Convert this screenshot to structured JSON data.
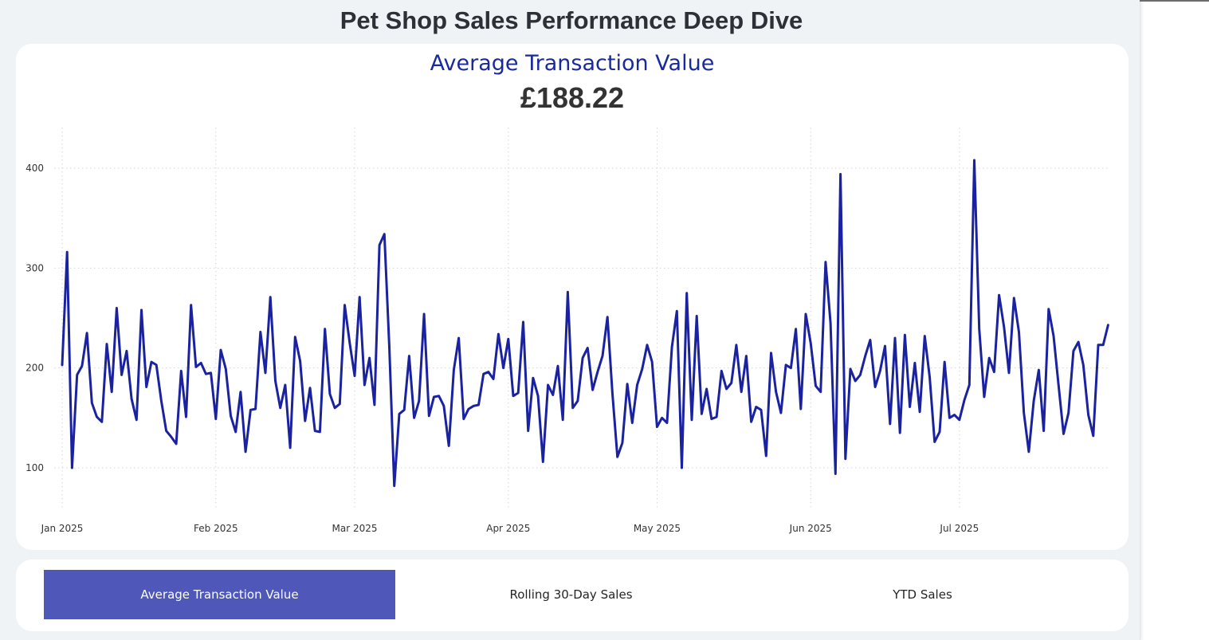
{
  "dashboard": {
    "title": "Pet Shop Sales Performance Deep Dive"
  },
  "kpi": {
    "label": "Average Transaction Value",
    "value": "£188.22"
  },
  "tabs": [
    {
      "label": "Average Transaction Value",
      "active": true
    },
    {
      "label": "Rolling 30-Day Sales",
      "active": false
    },
    {
      "label": "YTD Sales",
      "active": false
    }
  ],
  "colors": {
    "line": "#1a22a0",
    "accent_tab": "#4f58b8",
    "kpi_label": "#1a2a9a"
  },
  "chart_data": {
    "type": "line",
    "title": "",
    "xlabel": "",
    "ylabel": "",
    "x_start": "2025-01-01",
    "x_end": "2025-07-29",
    "ylim": [
      60,
      440
    ],
    "yticks": [
      100,
      200,
      300,
      400
    ],
    "xticks": [
      {
        "date": "2025-01-01",
        "label": "Jan 2025"
      },
      {
        "date": "2025-02-01",
        "label": "Feb 2025"
      },
      {
        "date": "2025-03-01",
        "label": "Mar 2025"
      },
      {
        "date": "2025-04-01",
        "label": "Apr 2025"
      },
      {
        "date": "2025-05-01",
        "label": "May 2025"
      },
      {
        "date": "2025-06-01",
        "label": "Jun 2025"
      },
      {
        "date": "2025-07-01",
        "label": "Jul 2025"
      }
    ],
    "grid": true,
    "series": [
      {
        "values": [
          203,
          316,
          100,
          193,
          202,
          235,
          165,
          151,
          146,
          224,
          176,
          260,
          193,
          217,
          169,
          148,
          258,
          181,
          206,
          203,
          167,
          137,
          131,
          124,
          197,
          151,
          263,
          201,
          205,
          194,
          195,
          149,
          218,
          199,
          152,
          136,
          176,
          116,
          158,
          159,
          236,
          195,
          271,
          187,
          160,
          183,
          120,
          231,
          207,
          147,
          180,
          137,
          136,
          239,
          174,
          160,
          164,
          263,
          225,
          192,
          271,
          183,
          210,
          163,
          323,
          334,
          221,
          82,
          154,
          158,
          212,
          150,
          167,
          254,
          152,
          171,
          172,
          162,
          122,
          198,
          230,
          149,
          159,
          162,
          163,
          194,
          196,
          189,
          234,
          200,
          229,
          172,
          175,
          246,
          137,
          190,
          172,
          106,
          183,
          173,
          202,
          148,
          276,
          160,
          167,
          210,
          220,
          178,
          196,
          212,
          251,
          175,
          111,
          125,
          184,
          145,
          183,
          199,
          223,
          206,
          141,
          150,
          145,
          221,
          257,
          100,
          275,
          148,
          252,
          154,
          179,
          149,
          151,
          197,
          179,
          185,
          223,
          176,
          212,
          146,
          161,
          158,
          112,
          215,
          176,
          155,
          203,
          200,
          239,
          159,
          254,
          225,
          182,
          176,
          306,
          245,
          94,
          394,
          109,
          199,
          187,
          193,
          212,
          228,
          181,
          197,
          222,
          144,
          230,
          135,
          233,
          161,
          205,
          156,
          232,
          191,
          126,
          136,
          206,
          150,
          153,
          148,
          168,
          183,
          408,
          239,
          171,
          210,
          196,
          273,
          241,
          195,
          270,
          236,
          155,
          116,
          167,
          198,
          137,
          259,
          232,
          183,
          134,
          155,
          217,
          226,
          203,
          153,
          132,
          223,
          223,
          243
        ]
      }
    ]
  }
}
